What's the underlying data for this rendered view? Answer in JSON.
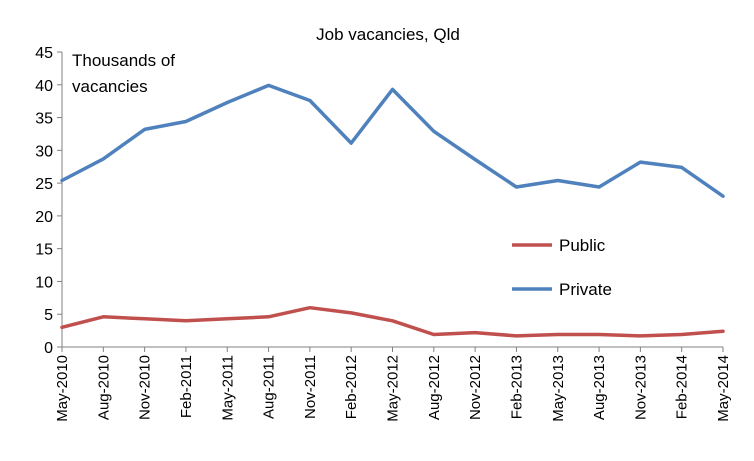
{
  "chart_data": {
    "type": "line",
    "title": "Job vacancies, Qld",
    "ylabel_lines": [
      "Thousands of",
      "vacancies"
    ],
    "xlabel": "",
    "ylim": [
      0,
      45
    ],
    "yticks": [
      0,
      5,
      10,
      15,
      20,
      25,
      30,
      35,
      40,
      45
    ],
    "grid": false,
    "legend_position": "right",
    "categories": [
      "May-2010",
      "Aug-2010",
      "Nov-2010",
      "Feb-2011",
      "May-2011",
      "Aug-2011",
      "Nov-2011",
      "Feb-2012",
      "May-2012",
      "Aug-2012",
      "Nov-2012",
      "Feb-2013",
      "May-2013",
      "Aug-2013",
      "Nov-2013",
      "Feb-2014",
      "May-2014"
    ],
    "series": [
      {
        "name": "Public",
        "color": "#c0504d",
        "values": [
          3.0,
          4.6,
          4.3,
          4.0,
          4.3,
          4.6,
          6.0,
          5.2,
          4.0,
          1.9,
          2.2,
          1.7,
          1.9,
          1.9,
          1.7,
          1.9,
          2.4
        ]
      },
      {
        "name": "Private",
        "color": "#4f81bd",
        "values": [
          25.4,
          28.7,
          33.2,
          34.4,
          37.3,
          39.9,
          37.6,
          31.1,
          39.3,
          32.9,
          28.6,
          24.4,
          25.4,
          24.4,
          28.2,
          27.4,
          23.0
        ]
      }
    ]
  }
}
